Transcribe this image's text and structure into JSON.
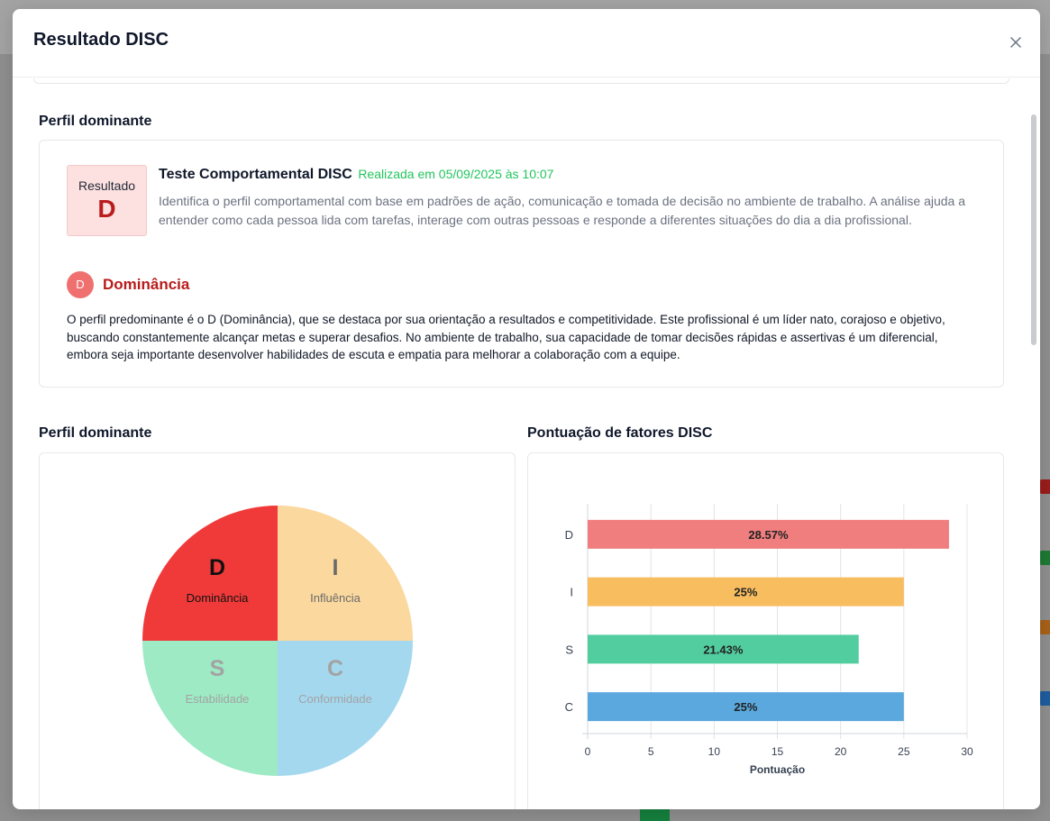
{
  "modal": {
    "title": "Resultado DISC"
  },
  "profile": {
    "section_title": "Perfil dominante",
    "result_label": "Resultado",
    "result_letter": "D",
    "test_title": "Teste Comportamental DISC",
    "test_date": "Realizada em 05/09/2025 às 10:07",
    "test_description": "Identifica o perfil comportamental com base em padrões de ação, comunicação e tomada de decisão no ambiente de trabalho. A análise ajuda a entender como cada pessoa lida com tarefas, interage com outras pessoas e responde a diferentes situações do dia a dia profissional.",
    "dominance_icon_letter": "D",
    "dominance_title": "Dominância",
    "dominance_text": "O perfil predominante é o D (Dominância), que se destaca por sua orientação a resultados e competitividade. Este profissional é um líder nato, corajoso e objetivo, buscando constantemente alcançar metas e superar desafios. No ambiente de trabalho, sua capacidade de tomar decisões rápidas e assertivas é um diferencial, embora seja importante desenvolver habilidades de escuta e empatia para melhorar a colaboração com a equipe."
  },
  "pie_section": {
    "title": "Perfil dominante"
  },
  "bar_section": {
    "title": "Pontuação de fatores DISC"
  },
  "colors": {
    "D_pie": "#f03a3a",
    "I_pie": "#fbd89e",
    "S_pie": "#9deac4",
    "C_pie": "#a4d8ef",
    "D_bar": "#f07e7e",
    "I_bar": "#f8bd5f",
    "S_bar": "#52cda0",
    "C_bar": "#5aa8dd"
  },
  "chart_data": [
    {
      "type": "pie",
      "quadrants": [
        {
          "letter": "D",
          "name": "Dominância",
          "highlighted": true
        },
        {
          "letter": "I",
          "name": "Influência",
          "highlighted": false
        },
        {
          "letter": "S",
          "name": "Estabilidade",
          "highlighted": false
        },
        {
          "letter": "C",
          "name": "Conformidade",
          "highlighted": false
        }
      ]
    },
    {
      "type": "bar",
      "orientation": "horizontal",
      "categories": [
        "D",
        "I",
        "S",
        "C"
      ],
      "values": [
        28.57,
        25,
        21.43,
        25
      ],
      "value_labels": [
        "28.57%",
        "25%",
        "21.43%",
        "25%"
      ],
      "xlabel": "Pontuação",
      "xlim": [
        0,
        30
      ],
      "xticks": [
        0,
        5,
        10,
        15,
        20,
        25,
        30
      ],
      "grid": true
    }
  ]
}
